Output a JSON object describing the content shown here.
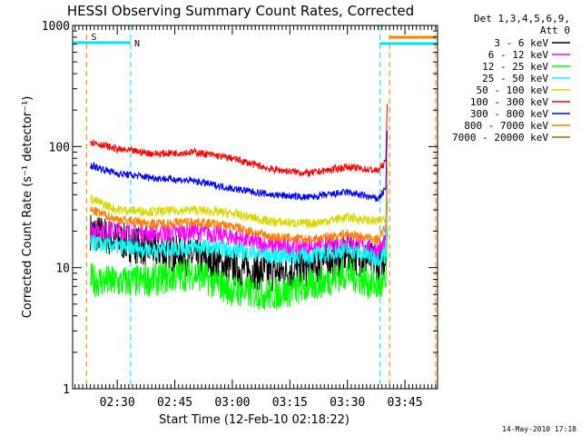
{
  "chart_data": {
    "type": "line",
    "title": "HESSI Observing Summary Count Rates, Corrected",
    "xlabel": "Start Time (12-Feb-10 02:18:22)",
    "ylabel": "Corrected Count Rate (s⁻¹ detector⁻¹)",
    "y_scale": "log",
    "ylim": [
      1,
      1000
    ],
    "y_ticks": [
      1,
      10,
      100,
      1000
    ],
    "y_tick_labels": [
      "1",
      "10",
      "100",
      "1000"
    ],
    "xlim": [
      "02:18:22",
      "03:53:30"
    ],
    "x_ticks": [
      "02:30",
      "02:45",
      "03:00",
      "03:15",
      "03:30",
      "03:45"
    ],
    "legend_header": [
      "Det 1,3,4,5,6,9,",
      "Att 0"
    ],
    "legend_position": "outside-right",
    "grid": false,
    "series": [
      {
        "name": "3 - 6 keV",
        "color": "#000000",
        "x": [
          "02:23",
          "02:30",
          "02:40",
          "02:50",
          "03:00",
          "03:10",
          "03:20",
          "03:30",
          "03:38",
          "03:40"
        ],
        "values": [
          20,
          17,
          14,
          12,
          10,
          9,
          10,
          13,
          11,
          12
        ]
      },
      {
        "name": "6 - 12 keV",
        "color": "#ff00ff",
        "x": [
          "02:23",
          "02:30",
          "02:40",
          "02:50",
          "03:00",
          "03:10",
          "03:20",
          "03:30",
          "03:38",
          "03:40"
        ],
        "values": [
          21,
          20,
          19,
          20,
          18,
          15,
          15,
          16,
          14,
          16
        ]
      },
      {
        "name": "12 - 25 keV",
        "color": "#00ff00",
        "x": [
          "02:23",
          "02:30",
          "02:40",
          "02:50",
          "03:00",
          "03:10",
          "03:20",
          "03:30",
          "03:38",
          "03:40"
        ],
        "values": [
          8,
          7.5,
          8,
          9,
          6.5,
          6,
          7,
          9,
          7,
          7
        ]
      },
      {
        "name": "25 - 50 keV",
        "color": "#00ffff",
        "x": [
          "02:23",
          "02:30",
          "02:40",
          "02:50",
          "03:00",
          "03:10",
          "03:20",
          "03:30",
          "03:38",
          "03:40"
        ],
        "values": [
          16,
          15,
          14,
          15,
          14,
          12.5,
          12.5,
          14,
          12,
          13
        ]
      },
      {
        "name": "50 - 100 keV",
        "color": "#d8d800",
        "x": [
          "02:23",
          "02:30",
          "02:40",
          "02:50",
          "03:00",
          "03:10",
          "03:20",
          "03:30",
          "03:38",
          "03:40"
        ],
        "values": [
          37,
          30,
          29,
          30,
          28,
          24,
          23,
          26,
          24,
          26
        ]
      },
      {
        "name": "100 - 300 keV",
        "color": "#ff0000",
        "x": [
          "02:23",
          "02:30",
          "02:40",
          "02:50",
          "03:00",
          "03:10",
          "03:20",
          "03:30",
          "03:38",
          "03:40"
        ],
        "values": [
          110,
          95,
          87,
          90,
          80,
          65,
          60,
          68,
          63,
          75
        ]
      },
      {
        "name": "300 - 800 keV",
        "color": "#0000ff",
        "x": [
          "02:23",
          "02:30",
          "02:40",
          "02:50",
          "03:00",
          "03:10",
          "03:20",
          "03:30",
          "03:38",
          "03:40"
        ],
        "values": [
          70,
          60,
          55,
          52,
          45,
          40,
          38,
          42,
          37,
          45
        ]
      },
      {
        "name": "800 - 7000 keV",
        "color": "#ff8000",
        "x": [
          "02:23",
          "02:30",
          "02:40",
          "02:50",
          "03:00",
          "03:10",
          "03:20",
          "03:30",
          "03:38",
          "03:40"
        ],
        "values": [
          30,
          25,
          23,
          24,
          22,
          18,
          17,
          19,
          17,
          22
        ]
      },
      {
        "name": "7000 - 20000 keV",
        "color": "#b06000",
        "x": [],
        "values": []
      }
    ],
    "overlays": {
      "cyan_vertical_lines": [
        "02:18:22",
        "02:33:30",
        "03:38:30",
        "03:53:30"
      ],
      "orange_vertical_lines": [
        "02:22:00",
        "03:41:00",
        "03:53:00"
      ],
      "flags": [
        {
          "label": "S",
          "color": "#ff8000"
        },
        {
          "label": "N",
          "color": "#00ffff"
        }
      ]
    }
  },
  "footer_stamp": "14-May-2010 17:18"
}
